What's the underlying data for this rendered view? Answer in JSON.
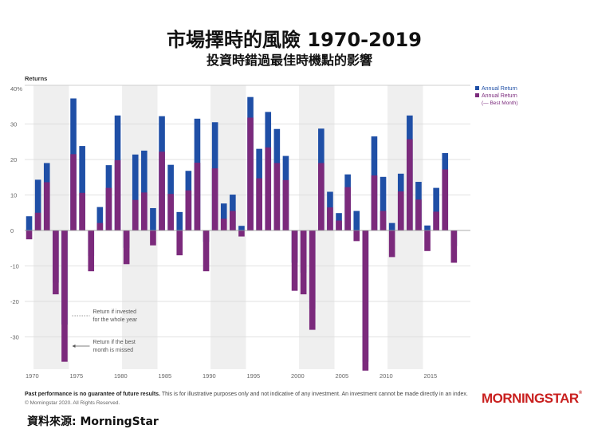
{
  "title": "市場擇時的風險  1970-2019",
  "subtitle": "投資時錯過最佳時機點的影響",
  "source": "資料來源: MorningStar",
  "disclaimer_bold": "Past performance is no guarantee of future results.",
  "disclaimer_rest": " This is for illustrative purposes only and not indicative of any investment. An investment cannot be made directly in an index.",
  "copyright": "© Morningstar 2020. All Rights Reserved.",
  "logo": "MORNINGSTAR",
  "logo_mark": "®",
  "colors": {
    "annual": "#1f4fa6",
    "missed": "#7b2a7c",
    "band": "#efefef",
    "logo": "#c9201f"
  },
  "chart_data": {
    "type": "bar",
    "ylabel": "Returns",
    "ylim": [
      -40,
      40
    ],
    "yticks": [
      "40%",
      "30",
      "20",
      "10",
      "0",
      "-10",
      "-20",
      "-30"
    ],
    "ytick_values": [
      40,
      30,
      20,
      10,
      0,
      -10,
      -20,
      -30
    ],
    "xticks": [
      "1970",
      "1975",
      "1980",
      "1985",
      "1990",
      "1995",
      "2000",
      "2005",
      "2010",
      "2015"
    ],
    "xtick_years": [
      1970,
      1975,
      1980,
      1985,
      1990,
      1995,
      2000,
      2005,
      2010,
      2015
    ],
    "x": [
      1970,
      1971,
      1972,
      1973,
      1974,
      1975,
      1976,
      1977,
      1978,
      1979,
      1980,
      1981,
      1982,
      1983,
      1984,
      1985,
      1986,
      1987,
      1988,
      1989,
      1990,
      1991,
      1992,
      1993,
      1994,
      1995,
      1996,
      1997,
      1998,
      1999,
      2000,
      2001,
      2002,
      2003,
      2004,
      2005,
      2006,
      2007,
      2008,
      2009,
      2010,
      2011,
      2012,
      2013,
      2014,
      2015,
      2016,
      2017,
      2018,
      2019
    ],
    "series": [
      {
        "name": "Annual Return",
        "values": [
          4,
          14.3,
          19,
          -14.7,
          -26.5,
          37.2,
          23.8,
          -7.2,
          6.6,
          18.4,
          32.4,
          -4.9,
          21.4,
          22.5,
          6.3,
          32.2,
          18.5,
          5.2,
          16.8,
          31.5,
          -3.2,
          30.5,
          7.6,
          10.1,
          1.3,
          37.6,
          23,
          33.4,
          28.6,
          21,
          -9.1,
          -11.9,
          -22.1,
          28.7,
          10.9,
          4.9,
          15.8,
          5.5,
          -37,
          26.5,
          15.1,
          2.1,
          16,
          32.4,
          13.7,
          1.4,
          12,
          21.8,
          -4.4,
          0
        ]
      },
      {
        "name": "Annual Return\n(— Best Month)",
        "values": [
          -2.5,
          5,
          13.6,
          -18,
          -37,
          21.5,
          10.6,
          -11.5,
          2.1,
          12,
          19.8,
          -9.5,
          8.6,
          10.7,
          -4.2,
          22.2,
          10.3,
          -7,
          11.3,
          19.1,
          -11.5,
          17.5,
          3.3,
          5.5,
          -1.7,
          31.8,
          14.7,
          23.4,
          19,
          14.2,
          -17,
          -18,
          -28,
          19,
          6.5,
          2.8,
          12.2,
          -3,
          -39.5,
          15.5,
          5.5,
          -7.5,
          11,
          25.7,
          8.7,
          -5.8,
          5.3,
          17.2,
          -9.1,
          0
        ]
      }
    ],
    "legend": [
      "Annual Return",
      "Annual Return",
      "(— Best Month)"
    ],
    "legend_position": "right",
    "shaded_bands": [
      [
        1971,
        1975
      ],
      [
        1981,
        1985
      ],
      [
        1991,
        1995
      ],
      [
        2001,
        2005
      ],
      [
        2011,
        2015
      ]
    ],
    "annotations": [
      {
        "year": 1974,
        "text": [
          "Return if invested",
          "for the whole year"
        ]
      },
      {
        "year": 1974,
        "text": [
          "Return if the best",
          "month is missed"
        ]
      }
    ]
  }
}
